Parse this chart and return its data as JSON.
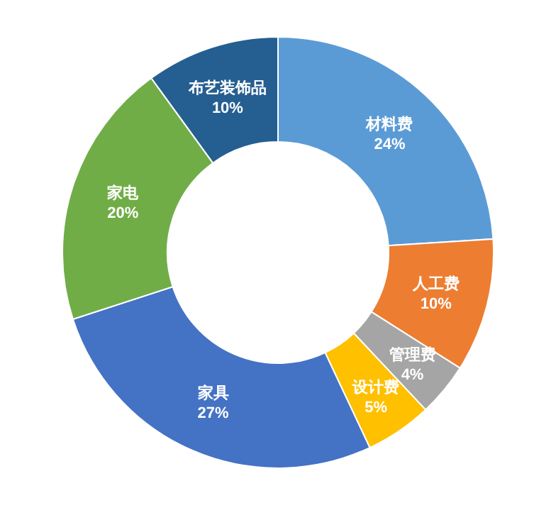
{
  "chart_data": {
    "type": "donut",
    "categories": [
      "材料费",
      "人工费",
      "管理费",
      "设计费",
      "家具",
      "家电",
      "布艺装饰品"
    ],
    "values": [
      24,
      10,
      4,
      5,
      27,
      20,
      10
    ],
    "value_labels": [
      "24%",
      "10%",
      "4%",
      "5%",
      "27%",
      "20%",
      "10%"
    ],
    "colors": [
      "#5b9bd5",
      "#ed7d31",
      "#a5a5a5",
      "#ffc000",
      "#4472c4",
      "#70ad47",
      "#255e91"
    ]
  }
}
